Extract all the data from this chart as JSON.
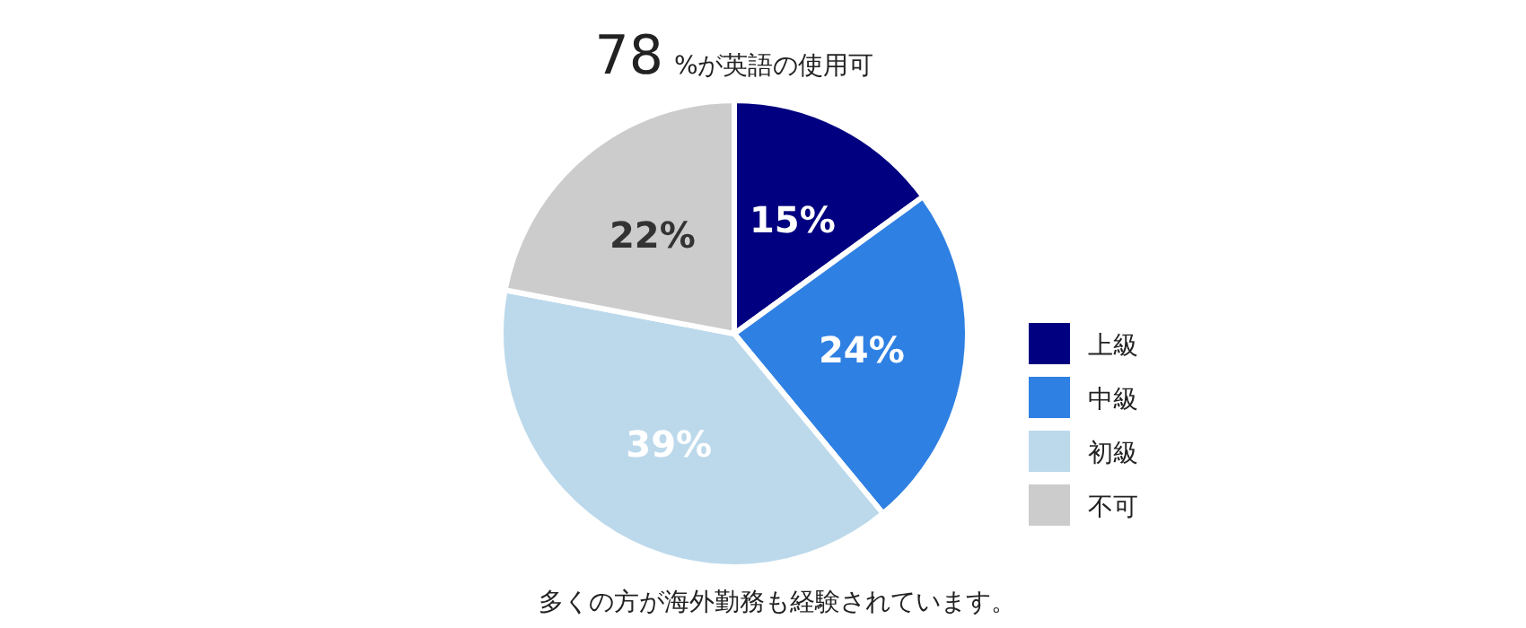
{
  "chart_data": {
    "type": "pie",
    "title": "78 %が英語の使用可",
    "categories": [
      "上級",
      "中級",
      "初級",
      "不可"
    ],
    "values": [
      15,
      24,
      39,
      22
    ],
    "colors": [
      "#000080",
      "#2f80e3",
      "#bcd9eb",
      "#cccccc"
    ],
    "value_labels": [
      "15%",
      "24%",
      "39%",
      "22%"
    ],
    "legend": "right",
    "annotations": [
      "多くの方が海外勤務も経験されています。"
    ]
  }
}
